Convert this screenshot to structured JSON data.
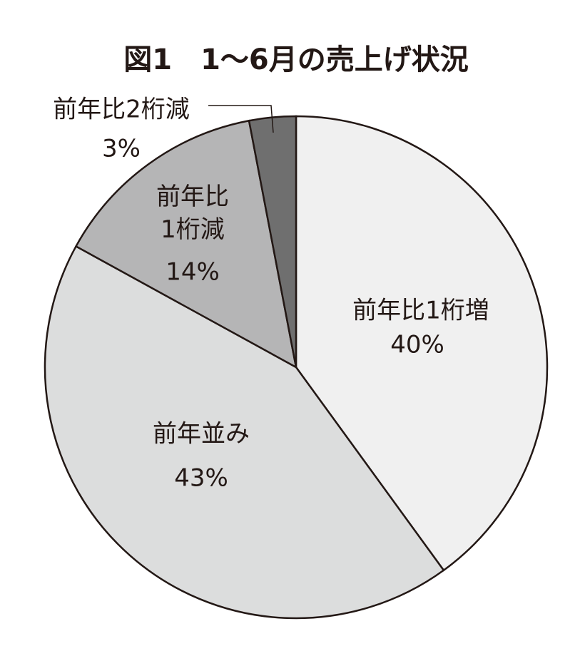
{
  "chart_data": {
    "type": "pie",
    "title": "図1　1〜6月の売上げ状況",
    "categories": [
      "前年比1桁増",
      "前年並み",
      "前年比\n1桁減",
      "前年比2桁減"
    ],
    "values": [
      40,
      43,
      14,
      3
    ],
    "value_labels": [
      "40%",
      "43%",
      "14%",
      "3%"
    ],
    "colors": [
      "#f0f0f0",
      "#dcdddd",
      "#b5b5b6",
      "#6f6f6f"
    ]
  }
}
